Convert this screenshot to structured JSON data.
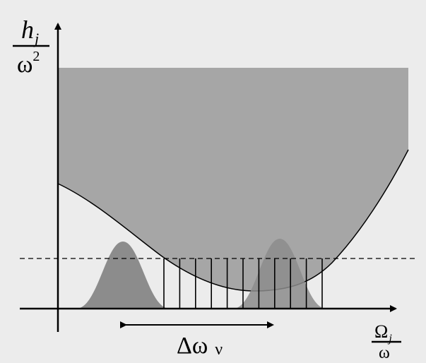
{
  "y_label": {
    "numerator": "h",
    "numerator_sub": "j",
    "denominator": "ω",
    "denominator_sup": "2"
  },
  "x_label": {
    "numerator": "Ω",
    "numerator_sub": "j",
    "denominator": "ω"
  },
  "bandwidth_label": {
    "symbol": "Δω",
    "sub": "ν"
  },
  "colors": {
    "background": "#ececec",
    "shaded_region": "#a6a6a6",
    "peaks": "#8c8c8c",
    "lines": "#000000"
  }
}
